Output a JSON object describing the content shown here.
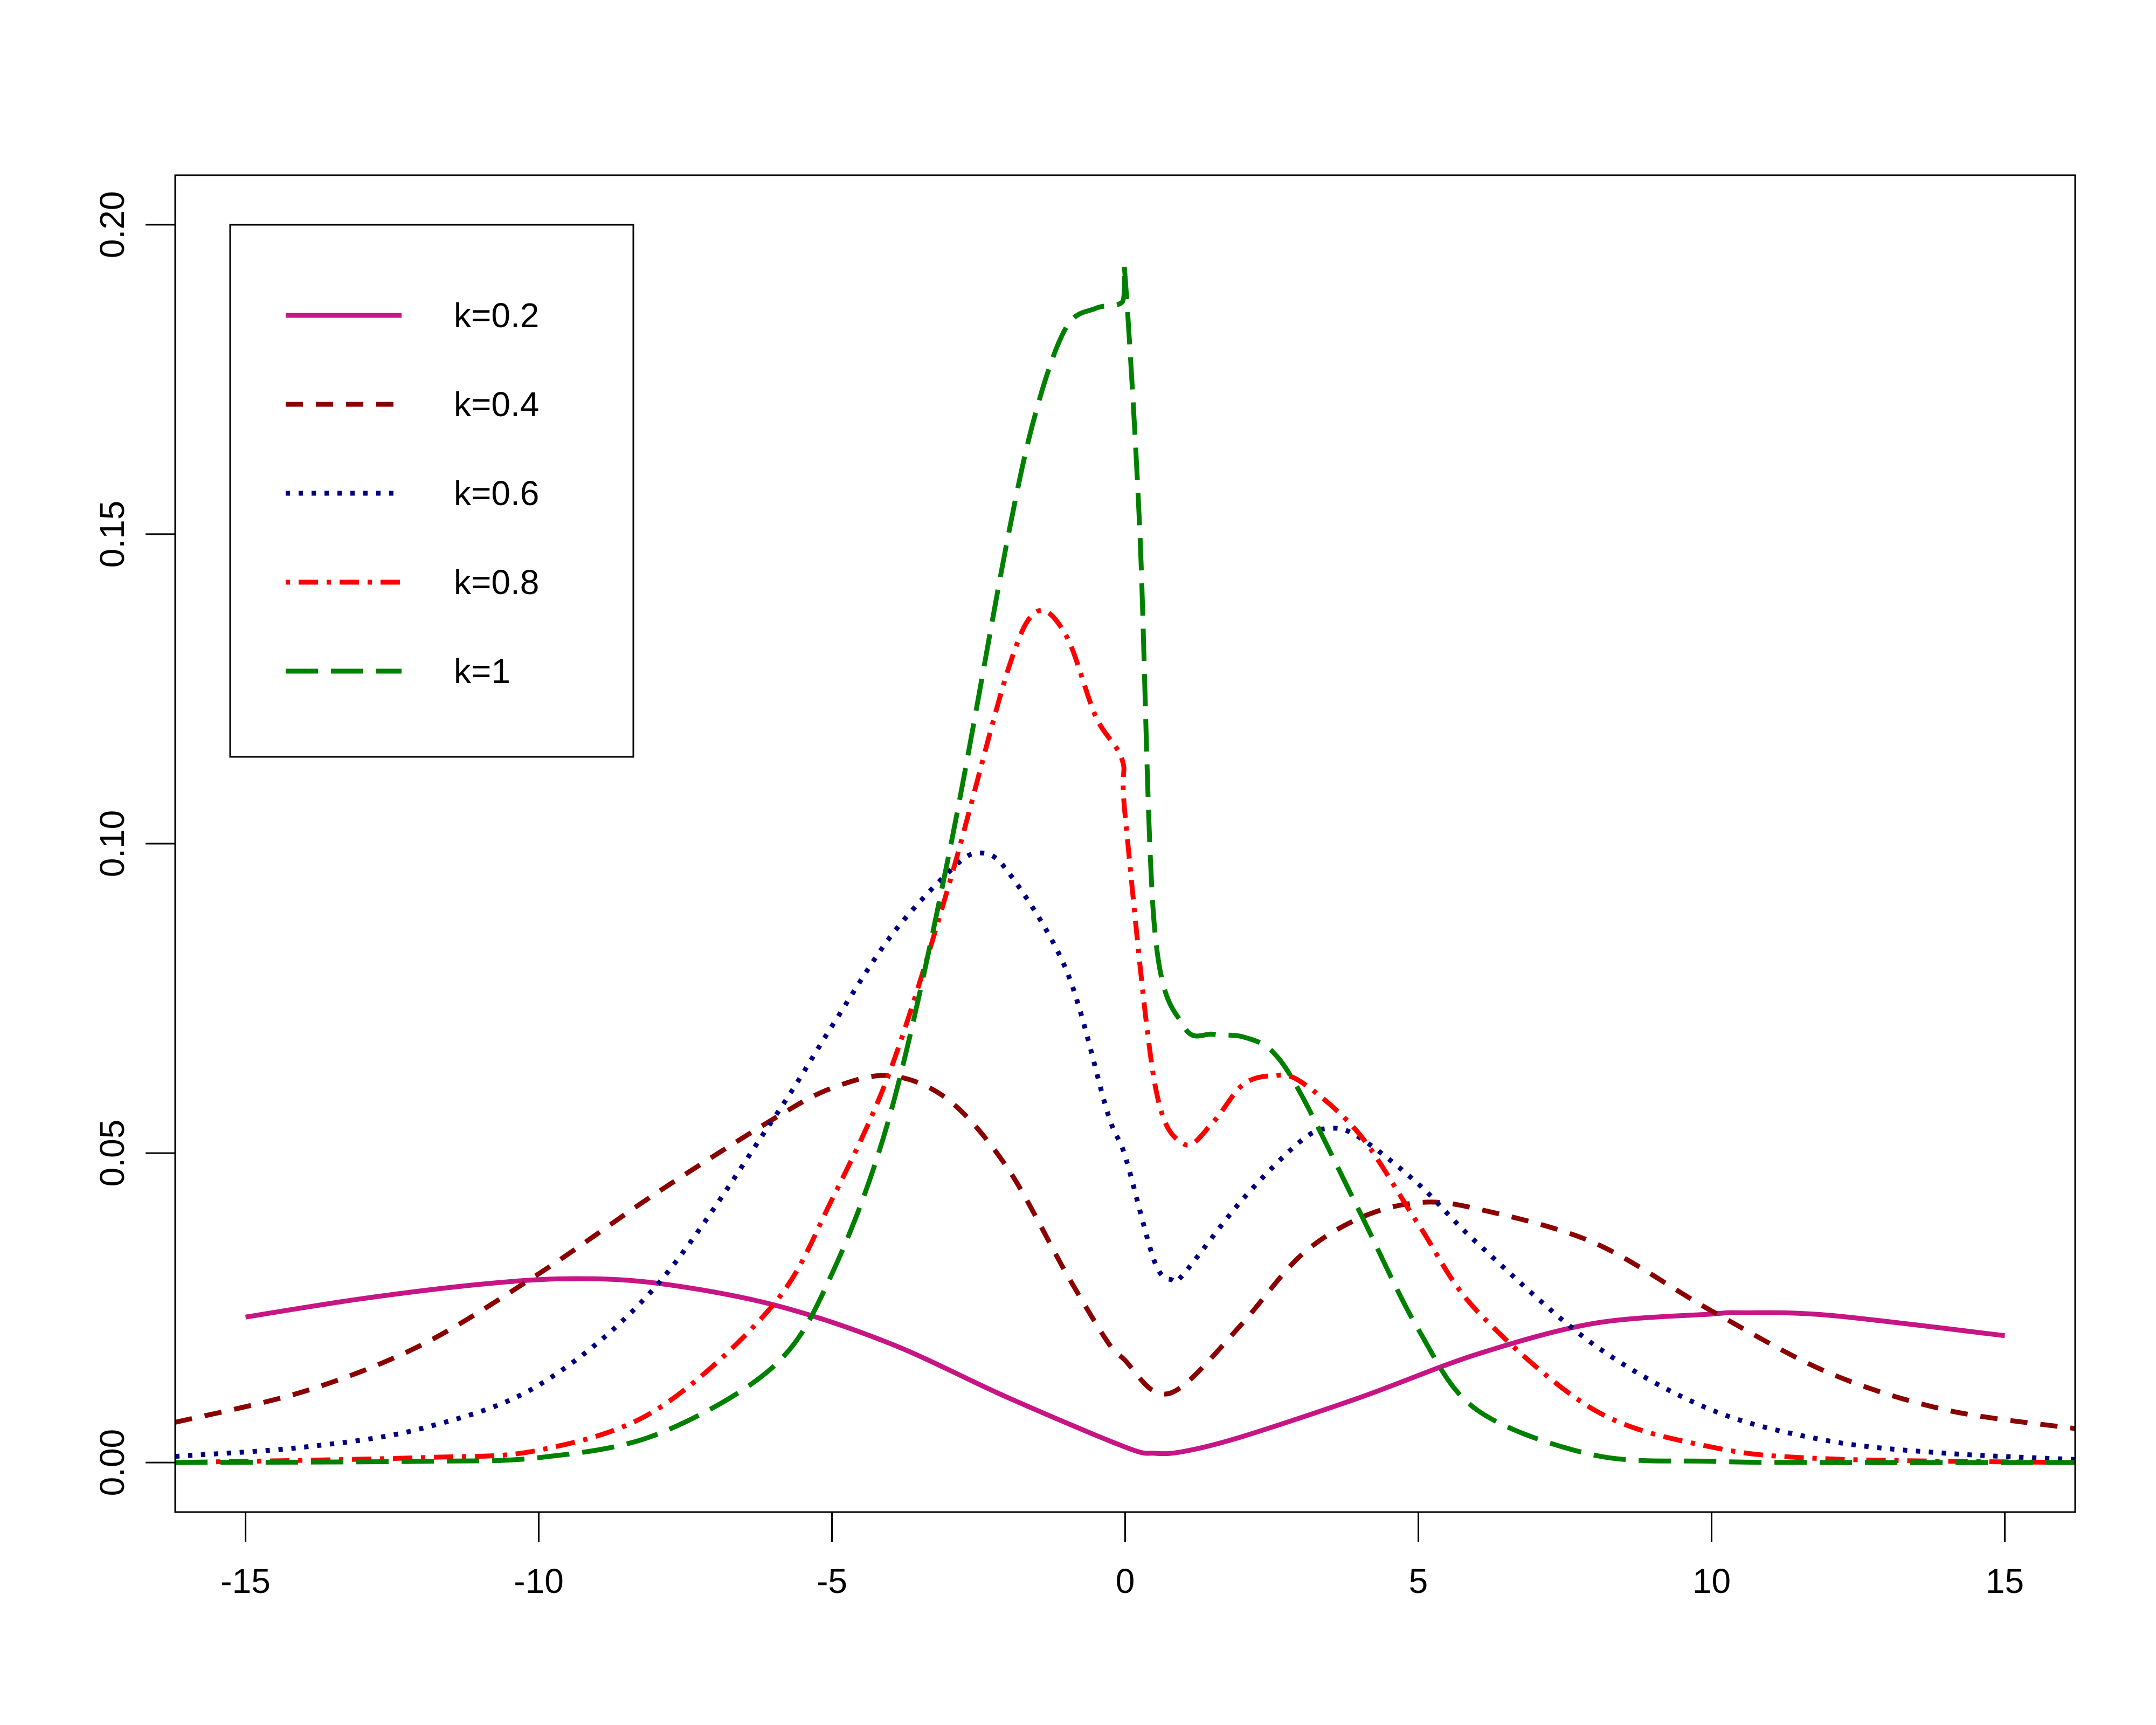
{
  "chart_data": {
    "type": "line",
    "title": "",
    "xlabel": "",
    "ylabel": "",
    "xlim": [
      -16.2,
      16.2
    ],
    "ylim": [
      -0.008,
      0.208
    ],
    "grid": false,
    "legend_position": "top-left",
    "x_ticks": [
      {
        "value": -15,
        "label": "-15"
      },
      {
        "value": -10,
        "label": "-10"
      },
      {
        "value": -5,
        "label": "-5"
      },
      {
        "value": 0,
        "label": "0"
      },
      {
        "value": 5,
        "label": "5"
      },
      {
        "value": 10,
        "label": "10"
      },
      {
        "value": 15,
        "label": "15"
      }
    ],
    "y_ticks": [
      {
        "value": 0.0,
        "label": "0.00"
      },
      {
        "value": 0.05,
        "label": "0.05"
      },
      {
        "value": 0.1,
        "label": "0.10"
      },
      {
        "value": 0.15,
        "label": "0.15"
      },
      {
        "value": 0.2,
        "label": "0.20"
      }
    ],
    "series": [
      {
        "name": "k=0.2",
        "color": "#C71585",
        "style": "solid",
        "x": [
          -15,
          -13,
          -11,
          -9.5,
          -8,
          -6,
          -4,
          -2,
          0,
          0.5,
          1,
          2,
          4,
          6,
          8,
          10,
          10.5,
          12,
          15
        ],
        "y": [
          0.0235,
          0.0265,
          0.0288,
          0.0297,
          0.029,
          0.0255,
          0.0192,
          0.0105,
          0.0025,
          0.0015,
          0.0018,
          0.0042,
          0.0105,
          0.0175,
          0.0225,
          0.024,
          0.0242,
          0.0238,
          0.0205
        ]
      },
      {
        "name": "k=0.4",
        "color": "#8B0000",
        "style": "dashed",
        "x": [
          -16.2,
          -14,
          -12,
          -10,
          -8,
          -6,
          -5,
          -4,
          -3,
          -2,
          -1,
          -0.3,
          0,
          0.5,
          1,
          2,
          3,
          4,
          5,
          6,
          8,
          10,
          12,
          14,
          16.2
        ],
        "y": [
          0.0065,
          0.0115,
          0.019,
          0.0305,
          0.0435,
          0.0555,
          0.0605,
          0.0625,
          0.0585,
          0.0475,
          0.0305,
          0.0195,
          0.0165,
          0.0115,
          0.0125,
          0.0225,
          0.0335,
          0.0395,
          0.042,
          0.041,
          0.0355,
          0.0245,
          0.0145,
          0.0085,
          0.0055
        ]
      },
      {
        "name": "k=0.6",
        "color": "#000080",
        "style": "dotted",
        "x": [
          -16.2,
          -14,
          -12,
          -10,
          -8,
          -6,
          -5,
          -4,
          -3,
          -2.5,
          -2,
          -1,
          -0.3,
          0,
          0.5,
          0.8,
          1,
          2,
          3,
          3.5,
          4,
          5,
          6,
          8,
          10,
          12,
          14,
          16.2
        ],
        "y": [
          0.001,
          0.0025,
          0.0055,
          0.0125,
          0.0285,
          0.0555,
          0.0705,
          0.085,
          0.0955,
          0.0985,
          0.0955,
          0.0795,
          0.0565,
          0.0495,
          0.0325,
          0.0295,
          0.0305,
          0.0425,
          0.052,
          0.054,
          0.0525,
          0.045,
          0.0355,
          0.019,
          0.0085,
          0.0035,
          0.0015,
          0.0005
        ]
      },
      {
        "name": "k=0.8",
        "color": "#FF0000",
        "style": "dot-dash",
        "x": [
          -16.2,
          -12,
          -10,
          -8,
          -6,
          -5,
          -4,
          -3,
          -2,
          -1.5,
          -1,
          -0.5,
          -0.05,
          0,
          0.5,
          1,
          1.5,
          2,
          2.5,
          3,
          4,
          5,
          6,
          8,
          10,
          12,
          16.2
        ],
        "y": [
          0.0,
          0.0008,
          0.002,
          0.0085,
          0.0255,
          0.0425,
          0.0635,
          0.0935,
          0.128,
          0.1375,
          0.1335,
          0.1205,
          0.1135,
          0.1045,
          0.0615,
          0.0515,
          0.055,
          0.061,
          0.0625,
          0.0615,
          0.053,
          0.0385,
          0.0245,
          0.0085,
          0.0025,
          0.0006,
          0.0
        ]
      },
      {
        "name": "k=1",
        "color": "#008000",
        "style": "long-dash",
        "x": [
          -16.2,
          -12,
          -10,
          -8,
          -6,
          -5,
          -4,
          -3,
          -2,
          -1.5,
          -1,
          -0.5,
          -0.05,
          0,
          0.25,
          0.5,
          1,
          1.5,
          2,
          2.5,
          3,
          4,
          5,
          6,
          8,
          10,
          12,
          16.2
        ],
        "y": [
          0.0,
          0.0002,
          0.0008,
          0.0045,
          0.0155,
          0.0305,
          0.0565,
          0.0985,
          0.1495,
          0.1705,
          0.1835,
          0.1865,
          0.1875,
          0.1915,
          0.1505,
          0.0865,
          0.0705,
          0.0692,
          0.0688,
          0.0665,
          0.0595,
          0.0405,
          0.0215,
          0.0085,
          0.0012,
          0.0002,
          0.0,
          0.0
        ]
      }
    ]
  }
}
